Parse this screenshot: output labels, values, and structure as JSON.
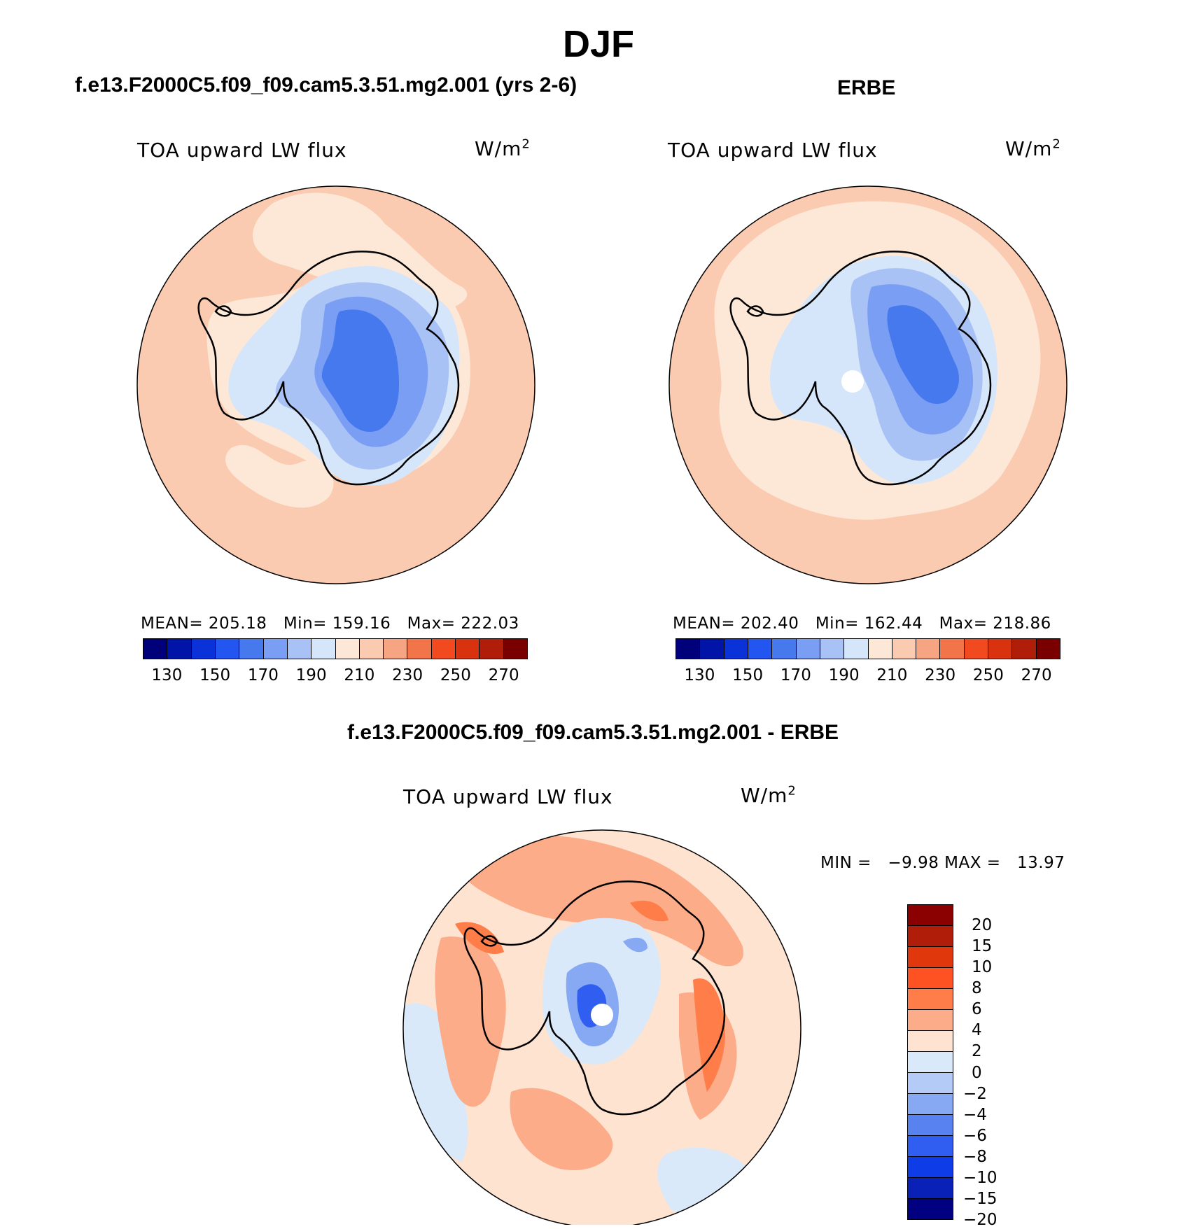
{
  "page_title": "DJF",
  "panels": {
    "model": {
      "case_title": "f.e13.F2000C5.f09_f09.cam5.3.51.mg2.001 (yrs 2-6)",
      "field": "TOA upward LW flux",
      "units_base": "W/m",
      "units_exp": "2",
      "mean_label": "MEAN=",
      "mean": "205.18",
      "min_label": "Min=",
      "min": "159.16",
      "max_label": "Max=",
      "max": "222.03"
    },
    "obs": {
      "case_title": "ERBE",
      "field": "TOA upward LW flux",
      "units_base": "W/m",
      "units_exp": "2",
      "mean_label": "MEAN=",
      "mean": "202.40",
      "min_label": "Min=",
      "min": "162.44",
      "max_label": "Max=",
      "max": "218.86"
    },
    "diff": {
      "case_title": "f.e13.F2000C5.f09_f09.cam5.3.51.mg2.001 - ERBE",
      "field": "TOA upward LW flux",
      "units_base": "W/m",
      "units_exp": "2",
      "minmax_text": "MIN =   −9.98 MAX =   13.97"
    }
  },
  "colorbars": {
    "abs_colors": [
      "#00007a",
      "#0014a8",
      "#0a32d8",
      "#2356f0",
      "#4679ee",
      "#7a9ef3",
      "#a9c2f5",
      "#d6e6fa",
      "#fde8d8",
      "#fbcbb1",
      "#f6a481",
      "#f2754a",
      "#f04a1e",
      "#d9320e",
      "#b01d08",
      "#7a0000"
    ],
    "abs_ticks": [
      "130",
      "150",
      "170",
      "190",
      "210",
      "230",
      "250",
      "270"
    ],
    "diff_colors": [
      "#8b0000",
      "#b01d08",
      "#e0380c",
      "#ff5222",
      "#ff7d48",
      "#fcac88",
      "#fde3d0",
      "#d9e9fa",
      "#b3cbf6",
      "#87a9f4",
      "#5782f0",
      "#2f5ef0",
      "#0e3ce6",
      "#0a21b8",
      "#000080"
    ],
    "diff_ticks": [
      "20",
      "15",
      "10",
      "8",
      "6",
      "4",
      "2",
      "0",
      "−2",
      "−4",
      "−6",
      "−8",
      "−10",
      "−15",
      "−20"
    ]
  },
  "map_colors": {
    "abs_ocean": "#fbcbb1",
    "abs_light": "#fde8d8",
    "abs_c1": "#d6e6fa",
    "abs_c2": "#a9c2f5",
    "abs_c3": "#7a9ef3",
    "abs_c4": "#4679ee",
    "diff_bg": "#fde3d0",
    "diff_warm": "#fcac88",
    "diff_hot": "#ff7d48",
    "diff_cold": "#d9e9fa",
    "diff_cold2": "#87a9f4",
    "diff_cold3": "#2f5ef0"
  }
}
